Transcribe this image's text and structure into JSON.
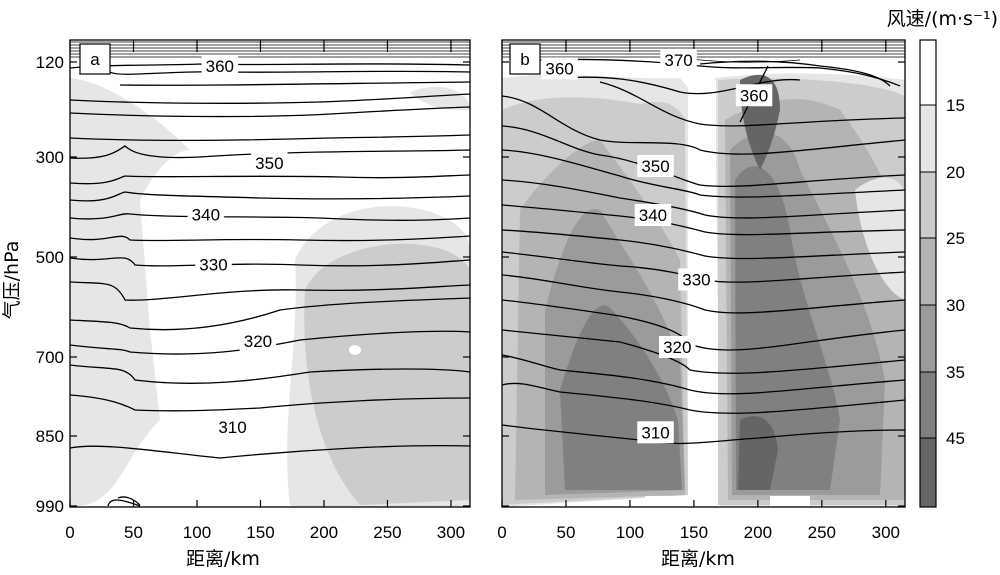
{
  "chart_data": [
    {
      "type": "contour",
      "panel_label": "a",
      "xlabel": "距离/km",
      "ylabel": "气压/hPa",
      "xlim": [
        0,
        315
      ],
      "xticks": [
        0,
        50,
        100,
        150,
        200,
        250,
        300
      ],
      "yticks": [
        120,
        300,
        500,
        700,
        850,
        990
      ],
      "contour_labels": [
        {
          "text": "360",
          "x": 118,
          "p": 128
        },
        {
          "text": "350",
          "x": 157,
          "p": 312
        },
        {
          "text": "340",
          "x": 107,
          "p": 415
        },
        {
          "text": "330",
          "x": 113,
          "p": 515
        },
        {
          "text": "320",
          "x": 148,
          "p": 668
        },
        {
          "text": "310",
          "x": 128,
          "p": 833
        }
      ]
    },
    {
      "type": "contour",
      "panel_label": "b",
      "xlabel": "距离/km",
      "xlim": [
        0,
        315
      ],
      "xticks": [
        0,
        50,
        100,
        150,
        200,
        250,
        300
      ],
      "yticks": [
        120,
        300,
        500,
        700,
        850,
        990
      ],
      "contour_labels": [
        {
          "text": "370",
          "x": 138,
          "p": 116
        },
        {
          "text": "360",
          "x": 45,
          "p": 132
        },
        {
          "text": "360",
          "x": 197,
          "p": 183
        },
        {
          "text": "350",
          "x": 120,
          "p": 318
        },
        {
          "text": "340",
          "x": 118,
          "p": 416
        },
        {
          "text": "330",
          "x": 152,
          "p": 545
        },
        {
          "text": "320",
          "x": 137,
          "p": 680
        },
        {
          "text": "310",
          "x": 120,
          "p": 843
        }
      ]
    }
  ],
  "colorbar": {
    "title": "风速/(m·s⁻¹)",
    "levels": [
      15,
      20,
      25,
      30,
      35,
      45
    ],
    "colors": [
      "#ffffff",
      "#e6e6e6",
      "#cccccc",
      "#b4b4b4",
      "#9b9b9b",
      "#808080",
      "#656565"
    ]
  }
}
